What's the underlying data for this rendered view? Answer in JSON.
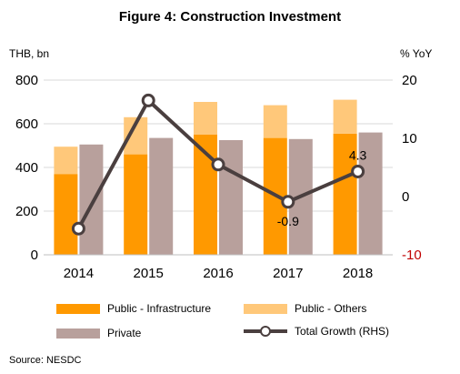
{
  "title": "Figure 4: Construction Investment",
  "source": "Source: NESDC",
  "chart_data": {
    "type": "bar",
    "categories": [
      "2014",
      "2015",
      "2016",
      "2017",
      "2018"
    ],
    "ylabel_left": "THB, bn",
    "ylabel_right": "% YoY",
    "ylim_left": [
      0,
      800
    ],
    "yticks_left": [
      "0",
      "200",
      "400",
      "600",
      "800"
    ],
    "ylim_right": [
      -10,
      20
    ],
    "yticks_right": [
      "-10",
      "0",
      "10",
      "20"
    ],
    "grid": "horizontal",
    "series": [
      {
        "name": "Public - Infrastructure",
        "stack": "public",
        "values": [
          370,
          460,
          550,
          535,
          555
        ],
        "color": "#ff9900"
      },
      {
        "name": "Public - Others",
        "stack": "public",
        "values": [
          125,
          170,
          150,
          150,
          155
        ],
        "color": "#ffc87a"
      },
      {
        "name": "Private",
        "stack": "private",
        "values": [
          505,
          535,
          525,
          530,
          560
        ],
        "color": "#b8a09c"
      },
      {
        "name": "Total Growth (RHS)",
        "type": "line",
        "axis": "right",
        "values": [
          -5.5,
          16.5,
          5.5,
          -0.9,
          4.3
        ],
        "color": "#4a3f3f"
      }
    ],
    "annotations": [
      {
        "label": "-0.9",
        "category": "2017"
      },
      {
        "label": "4.3",
        "category": "2018"
      }
    ]
  }
}
